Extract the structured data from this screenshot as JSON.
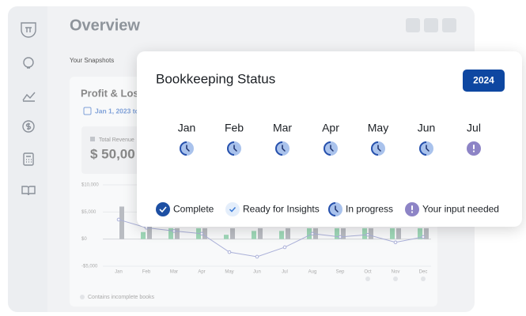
{
  "header": {
    "title": "Overview"
  },
  "snapshots_label": "Your Snapshots",
  "profit_loss": {
    "title": "Profit & Loss",
    "date_range": "Jan 1, 2023 to",
    "total_revenue_label": "Total Revenue",
    "total_revenue": "$ 50,00",
    "note": "Contains incomplete books",
    "chart": {
      "type": "bar",
      "categories": [
        "Jan",
        "Feb",
        "Mar",
        "Apr",
        "May",
        "Jun",
        "Jul",
        "Aug",
        "Sep",
        "Oct",
        "Nov",
        "Dec"
      ],
      "ylim": [
        -5000,
        10000
      ],
      "yticks": [
        {
          "value": 10000,
          "label": "$10,000"
        },
        {
          "value": 5000,
          "label": "$5,000"
        },
        {
          "value": 0,
          "label": "$0"
        },
        {
          "value": -5000,
          "label": "-$5,000"
        }
      ],
      "series": [
        {
          "type": "bar",
          "color": "#9fd8b8",
          "values": [
            null,
            1300,
            2000,
            2000,
            800,
            1500,
            1500,
            2000,
            2000,
            2000,
            2000,
            2000
          ]
        },
        {
          "type": "bar",
          "color": "#b9bcc2",
          "values": [
            6000,
            3000,
            2000,
            2000,
            2000,
            2000,
            2000,
            2000,
            2000,
            2000,
            2000,
            2000
          ]
        },
        {
          "type": "line",
          "color": "#aab0d8",
          "values": [
            3600,
            2100,
            1500,
            1000,
            -2400,
            -3250,
            -1500,
            1000,
            400,
            800,
            -600,
            400
          ]
        }
      ]
    }
  },
  "bookkeeping": {
    "title": "Bookkeeping Status",
    "year": "2024",
    "months": [
      {
        "label": "Jan",
        "status": 2
      },
      {
        "label": "Feb",
        "status": 2
      },
      {
        "label": "Mar",
        "status": 2
      },
      {
        "label": "Apr",
        "status": 2
      },
      {
        "label": "May",
        "status": 2
      },
      {
        "label": "Jun",
        "status": 2
      },
      {
        "label": "Jul",
        "status": 3
      }
    ],
    "legend": [
      {
        "label": "Complete",
        "status": 0
      },
      {
        "label": "Ready for Insights",
        "status": 1
      },
      {
        "label": "In progress",
        "status": 2
      },
      {
        "label": "Your input needed",
        "status": 3
      }
    ]
  }
}
